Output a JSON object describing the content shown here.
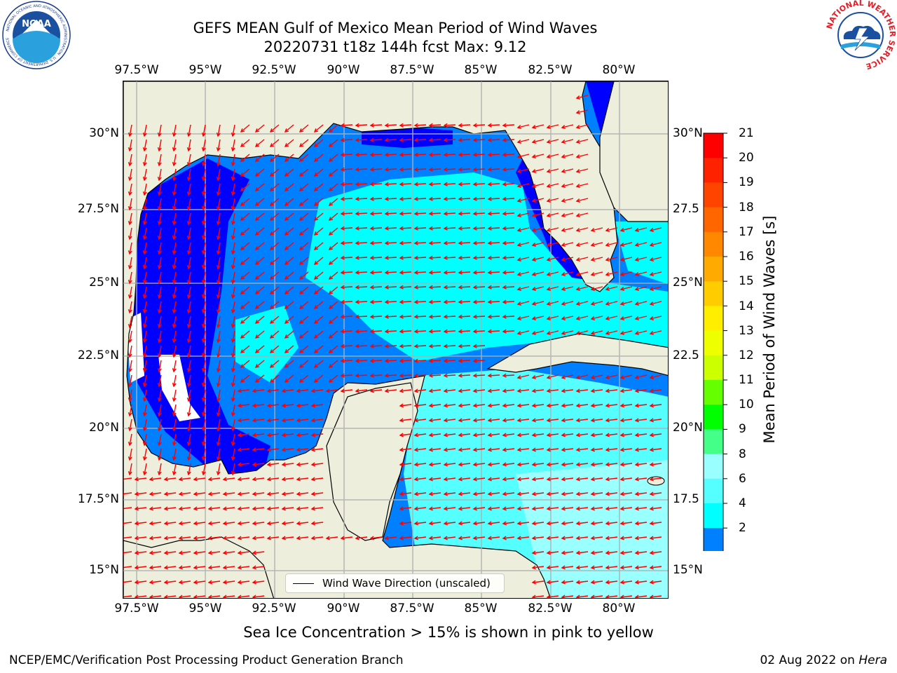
{
  "header": {
    "title_line1": "GEFS MEAN Gulf of Mexico Mean Period of Wind Waves",
    "title_line2": "20220731 t18z 144h fcst   Max: 9.12"
  },
  "logos": {
    "noaa": {
      "center_text": "NOAA",
      "ring_text": "NATIONAL OCEANIC AND ATMOSPHERIC ADMINISTRATION · U.S. DEPARTMENT OF COMMERCE"
    },
    "nws": {
      "ring_text": "NATIONAL WEATHER SERVICE"
    }
  },
  "map": {
    "lon_ticks": [
      "97.5°W",
      "95°W",
      "92.5°W",
      "90°W",
      "87.5°W",
      "85°W",
      "82.5°W",
      "80°W"
    ],
    "lat_ticks_left": [
      "30°N",
      "27.5°N",
      "25°N",
      "22.5°N",
      "20°N",
      "17.5°N",
      "15°N"
    ],
    "lat_ticks_right": [
      "30°N",
      "27.5",
      "25°N",
      "22.5",
      "20°N",
      "17.5",
      "15°N"
    ],
    "extent": {
      "lon_min": -98,
      "lon_max": -78.2,
      "lat_min": 14,
      "lat_max": 31.8
    },
    "legend_label": "Wind Wave Direction (unscaled)",
    "colors": {
      "land": "#eeeedd",
      "ocean_low": "#0000ff",
      "ocean_2_4": "#0080ff",
      "ocean_4_6": "#00ffff",
      "ocean_6_8": "#55ffff",
      "ocean_8_9": "#99ffff",
      "arrows": "#ff0000"
    }
  },
  "colorbar": {
    "label": "Mean Period of Wind Waves [s]",
    "ticks": [
      "21",
      "20",
      "19",
      "18",
      "17",
      "16",
      "15",
      "14",
      "13",
      "12",
      "11",
      "10",
      "9",
      "8",
      "6",
      "4",
      "2"
    ],
    "colors": [
      "#ff0000",
      "#ff2200",
      "#ff4400",
      "#ff6600",
      "#ff8800",
      "#ffaa00",
      "#ffcc00",
      "#ffee00",
      "#eeff00",
      "#ccff00",
      "#66ff00",
      "#00ff00",
      "#44ff88",
      "#99ffff",
      "#55ffff",
      "#00ffff",
      "#0080ff"
    ],
    "under_color": "#0000ff"
  },
  "notes": {
    "ice": "Sea Ice Concentration > 15% is shown in pink to yellow"
  },
  "footer": {
    "left": "NCEP/EMC/Verification Post Processing Product Generation Branch",
    "date": "02 Aug 2022 on",
    "host": "Hera"
  }
}
